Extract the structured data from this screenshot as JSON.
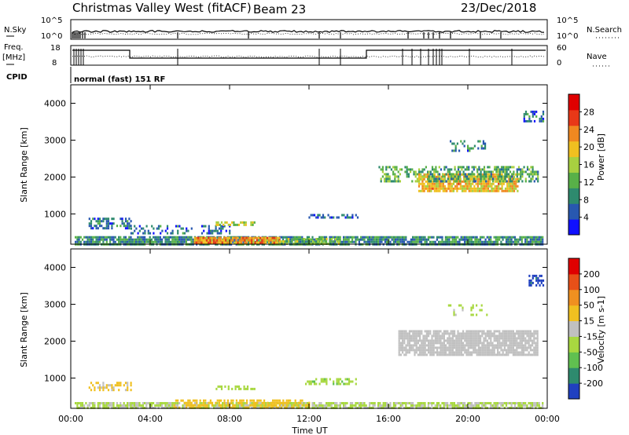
{
  "header": {
    "station": "Christmas Valley West (fitACF)",
    "beam": "Beam 23",
    "date": "23/Dec/2018",
    "n_sky_label": "N.Sky",
    "n_search_label": "N.Search",
    "freq_label_1": "Freq.",
    "freq_label_2": "[MHz]",
    "nave_label": "Nave",
    "cpid_label": "CPID",
    "cpid_text": "normal (fast) 151 RF",
    "noise_ticks_left": [
      "10^5",
      "10^0"
    ],
    "noise_ticks_right": [
      "10^5",
      "10^0"
    ],
    "freq_ticks": [
      "18",
      "8"
    ],
    "nave_ticks": [
      "60",
      "0"
    ]
  },
  "colors": {
    "power_scale": [
      "#1010ff",
      "#2858b0",
      "#2e8a6e",
      "#58b048",
      "#a8d040",
      "#f0c020",
      "#f08820",
      "#e83818",
      "#e00000"
    ],
    "velocity_scale": [
      "#2040c0",
      "#2e8a6e",
      "#60c050",
      "#a8d840",
      "#c0c0c0",
      "#f0c020",
      "#f09020",
      "#e85018",
      "#e00000"
    ]
  },
  "chart_data": [
    {
      "type": "heatmap",
      "panel": "power",
      "ylabel": "Slant Range [km]",
      "xlabel": "",
      "x_ticks": [
        "00:00",
        "04:00",
        "08:00",
        "12:00",
        "16:00",
        "20:00",
        "00:00"
      ],
      "y_ticks": [
        "1000",
        "2000",
        "3000",
        "4000"
      ],
      "xlim_hours": [
        0,
        24
      ],
      "ylim_km": [
        180,
        4500
      ],
      "colorbar_label": "Power [dB]",
      "colorbar_ticks": [
        "4",
        "8",
        "12",
        "16",
        "20",
        "24",
        "28"
      ],
      "colorbar_range": [
        0,
        32
      ],
      "scatter_regions": [
        {
          "t0": 0.2,
          "t1": 23.8,
          "r0": 180,
          "r1": 400,
          "level": 9,
          "density": 0.85
        },
        {
          "t0": 6.2,
          "t1": 10.5,
          "r0": 200,
          "r1": 380,
          "level": 22,
          "density": 0.9
        },
        {
          "t0": 10.5,
          "t1": 13.5,
          "r0": 200,
          "r1": 350,
          "level": 14,
          "density": 0.6
        },
        {
          "t0": 0.9,
          "t1": 3.0,
          "r0": 600,
          "r1": 900,
          "level": 7,
          "density": 0.55
        },
        {
          "t0": 3.0,
          "t1": 8.0,
          "r0": 500,
          "r1": 700,
          "level": 6,
          "density": 0.3
        },
        {
          "t0": 7.3,
          "t1": 9.3,
          "r0": 700,
          "r1": 800,
          "level": 16,
          "density": 0.6
        },
        {
          "t0": 11.8,
          "t1": 14.5,
          "r0": 900,
          "r1": 1000,
          "level": 6,
          "density": 0.6
        },
        {
          "t0": 15.5,
          "t1": 18.0,
          "r0": 1900,
          "r1": 2300,
          "level": 12,
          "density": 0.45
        },
        {
          "t0": 17.5,
          "t1": 22.5,
          "r0": 1600,
          "r1": 2100,
          "level": 20,
          "density": 0.85
        },
        {
          "t0": 18.0,
          "t1": 23.5,
          "r0": 1900,
          "r1": 2300,
          "level": 11,
          "density": 0.55
        },
        {
          "t0": 19.0,
          "t1": 21.0,
          "r0": 2700,
          "r1": 3000,
          "level": 8,
          "density": 0.3
        },
        {
          "t0": 22.8,
          "t1": 23.8,
          "r0": 3500,
          "r1": 3800,
          "level": 7,
          "density": 0.5
        }
      ]
    },
    {
      "type": "heatmap",
      "panel": "velocity",
      "ylabel": "Slant Range [km]",
      "xlabel": "Time UT",
      "x_ticks": [
        "00:00",
        "04:00",
        "08:00",
        "12:00",
        "16:00",
        "20:00",
        "00:00"
      ],
      "y_ticks": [
        "1000",
        "2000",
        "3000",
        "4000"
      ],
      "xlim_hours": [
        0,
        24
      ],
      "ylim_km": [
        180,
        4500
      ],
      "colorbar_label": "Velocity [m s-1]",
      "colorbar_ticks": [
        "200",
        "100",
        "50",
        "15",
        "-15",
        "-50",
        "-100",
        "-200"
      ],
      "colorbar_range": [
        -250,
        250
      ],
      "scatter_regions": [
        {
          "t0": 0.2,
          "t1": 23.8,
          "r0": 180,
          "r1": 350,
          "level": -30,
          "density": 0.8
        },
        {
          "t0": 5.0,
          "t1": 12.0,
          "r0": 200,
          "r1": 420,
          "level": 60,
          "density": 0.55
        },
        {
          "t0": 0.9,
          "t1": 3.0,
          "r0": 650,
          "r1": 900,
          "level": 40,
          "density": 0.5
        },
        {
          "t0": 7.3,
          "t1": 9.3,
          "r0": 700,
          "r1": 800,
          "level": -60,
          "density": 0.5
        },
        {
          "t0": 11.8,
          "t1": 14.5,
          "r0": 850,
          "r1": 1000,
          "level": -70,
          "density": 0.5
        },
        {
          "t0": 16.5,
          "t1": 23.5,
          "r0": 1600,
          "r1": 2300,
          "level": 0,
          "density": 0.85
        },
        {
          "t0": 19.0,
          "t1": 21.0,
          "r0": 2700,
          "r1": 3000,
          "level": -40,
          "density": 0.3
        },
        {
          "t0": 22.8,
          "t1": 23.8,
          "r0": 3500,
          "r1": 3800,
          "level": -210,
          "density": 0.5
        }
      ]
    }
  ]
}
